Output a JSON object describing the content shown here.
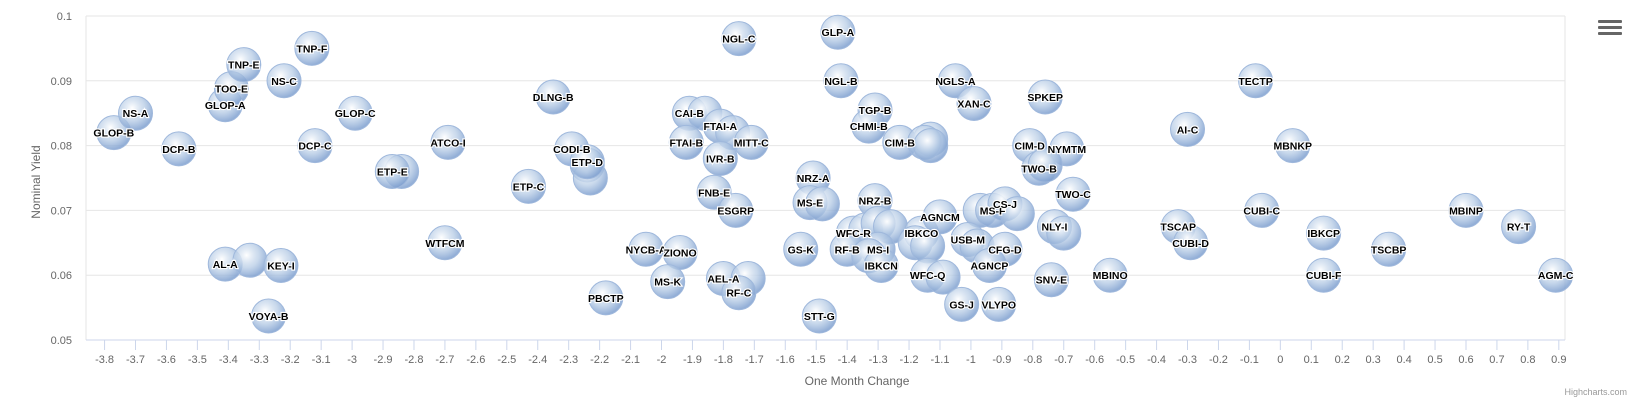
{
  "chart_data": {
    "type": "scatter",
    "xlabel": "One Month Change",
    "ylabel": "Nominal Yield",
    "xlim": [
      -3.86,
      0.92
    ],
    "ylim": [
      0.05,
      0.1
    ],
    "x_ticks": [
      "-3.8",
      "-3.7",
      "-3.6",
      "-3.5",
      "-3.4",
      "-3.3",
      "-3.2",
      "-3.1",
      "-3",
      "-2.9",
      "-2.8",
      "-2.7",
      "-2.6",
      "-2.5",
      "-2.4",
      "-2.3",
      "-2.2",
      "-2.1",
      "-2",
      "-1.9",
      "-1.8",
      "-1.7",
      "-1.6",
      "-1.5",
      "-1.4",
      "-1.3",
      "-1.2",
      "-1.1",
      "-1",
      "-0.9",
      "-0.8",
      "-0.7",
      "-0.6",
      "-0.5",
      "-0.4",
      "-0.3",
      "-0.2",
      "-0.1",
      "0",
      "0.1",
      "0.2",
      "0.3",
      "0.4",
      "0.5",
      "0.6",
      "0.7",
      "0.8",
      "0.9"
    ],
    "y_ticks": [
      "0.05",
      "0.06",
      "0.07",
      "0.08",
      "0.09",
      "0.1"
    ],
    "grid": true,
    "marker_color": "#b8cde6",
    "points": [
      {
        "x": -3.77,
        "y": 0.082,
        "label": "GLOP-B"
      },
      {
        "x": -3.7,
        "y": 0.085,
        "label": "NS-A"
      },
      {
        "x": -3.56,
        "y": 0.0795,
        "label": "DCP-B"
      },
      {
        "x": -3.41,
        "y": 0.0863,
        "label": "GLOP-A"
      },
      {
        "x": -3.39,
        "y": 0.0888,
        "label": "TOO-E"
      },
      {
        "x": -3.35,
        "y": 0.0925,
        "label": "TNP-E"
      },
      {
        "x": -3.22,
        "y": 0.09,
        "label": "NS-C"
      },
      {
        "x": -3.13,
        "y": 0.095,
        "label": "TNP-F"
      },
      {
        "x": -3.12,
        "y": 0.08,
        "label": "DCP-C"
      },
      {
        "x": -2.99,
        "y": 0.085,
        "label": "GLOP-C"
      },
      {
        "x": -2.84,
        "y": 0.076,
        "label": ""
      },
      {
        "x": -2.87,
        "y": 0.076,
        "label": "ETP-E"
      },
      {
        "x": -2.69,
        "y": 0.0805,
        "label": "ATCO-I"
      },
      {
        "x": -2.7,
        "y": 0.065,
        "label": "WTFCM"
      },
      {
        "x": -3.41,
        "y": 0.0617,
        "label": "AL-A"
      },
      {
        "x": -3.33,
        "y": 0.0623,
        "label": ""
      },
      {
        "x": -3.23,
        "y": 0.0615,
        "label": "KEY-I"
      },
      {
        "x": -3.27,
        "y": 0.0537,
        "label": "VOYA-B"
      },
      {
        "x": -2.35,
        "y": 0.0875,
        "label": "DLNG-B"
      },
      {
        "x": -2.43,
        "y": 0.0737,
        "label": "ETP-C"
      },
      {
        "x": -2.29,
        "y": 0.0795,
        "label": "CODI-B"
      },
      {
        "x": -2.24,
        "y": 0.077,
        "label": ""
      },
      {
        "x": -2.23,
        "y": 0.075,
        "label": ""
      },
      {
        "x": -2.24,
        "y": 0.0775,
        "label": "ETP-D"
      },
      {
        "x": -2.18,
        "y": 0.0565,
        "label": "PBCTP"
      },
      {
        "x": -2.05,
        "y": 0.064,
        "label": "NYCB-A"
      },
      {
        "x": -1.94,
        "y": 0.0635,
        "label": "ZIONO"
      },
      {
        "x": -1.98,
        "y": 0.059,
        "label": "MS-K"
      },
      {
        "x": -1.91,
        "y": 0.085,
        "label": "CAI-B"
      },
      {
        "x": -1.86,
        "y": 0.085,
        "label": ""
      },
      {
        "x": -1.92,
        "y": 0.0805,
        "label": "FTAI-B"
      },
      {
        "x": -1.81,
        "y": 0.083,
        "label": "FTAI-A"
      },
      {
        "x": -1.77,
        "y": 0.082,
        "label": ""
      },
      {
        "x": -1.71,
        "y": 0.0805,
        "label": "MITT-C"
      },
      {
        "x": -1.81,
        "y": 0.078,
        "label": "IVR-B"
      },
      {
        "x": -1.83,
        "y": 0.0728,
        "label": "FNB-E"
      },
      {
        "x": -1.76,
        "y": 0.07,
        "label": "ESGRP"
      },
      {
        "x": -1.8,
        "y": 0.0595,
        "label": "AEL-A"
      },
      {
        "x": -1.72,
        "y": 0.0595,
        "label": ""
      },
      {
        "x": -1.75,
        "y": 0.0573,
        "label": "RF-C"
      },
      {
        "x": -1.75,
        "y": 0.0965,
        "label": "NGL-C"
      },
      {
        "x": -1.43,
        "y": 0.0975,
        "label": "GLP-A"
      },
      {
        "x": -1.42,
        "y": 0.09,
        "label": "NGL-B"
      },
      {
        "x": -1.51,
        "y": 0.075,
        "label": "NRZ-A"
      },
      {
        "x": -1.52,
        "y": 0.0712,
        "label": "MS-E"
      },
      {
        "x": -1.48,
        "y": 0.071,
        "label": ""
      },
      {
        "x": -1.55,
        "y": 0.064,
        "label": "GS-K"
      },
      {
        "x": -1.49,
        "y": 0.0537,
        "label": "STT-G"
      },
      {
        "x": -1.31,
        "y": 0.0855,
        "label": "TGP-B"
      },
      {
        "x": -1.33,
        "y": 0.083,
        "label": "CHMI-B"
      },
      {
        "x": -1.23,
        "y": 0.0805,
        "label": "CIM-B"
      },
      {
        "x": -1.13,
        "y": 0.081,
        "label": ""
      },
      {
        "x": -1.15,
        "y": 0.0805,
        "label": ""
      },
      {
        "x": -1.13,
        "y": 0.08,
        "label": ""
      },
      {
        "x": -1.31,
        "y": 0.0715,
        "label": "NRZ-B"
      },
      {
        "x": -1.38,
        "y": 0.0665,
        "label": "WFC-R"
      },
      {
        "x": -1.34,
        "y": 0.067,
        "label": ""
      },
      {
        "x": -1.3,
        "y": 0.068,
        "label": ""
      },
      {
        "x": -1.26,
        "y": 0.0675,
        "label": ""
      },
      {
        "x": -1.4,
        "y": 0.064,
        "label": "RF-B"
      },
      {
        "x": -1.3,
        "y": 0.064,
        "label": "MS-I"
      },
      {
        "x": -1.33,
        "y": 0.063,
        "label": ""
      },
      {
        "x": -1.29,
        "y": 0.0615,
        "label": "IBKCN"
      },
      {
        "x": -1.16,
        "y": 0.0665,
        "label": "IBKCO"
      },
      {
        "x": -1.18,
        "y": 0.065,
        "label": ""
      },
      {
        "x": -1.14,
        "y": 0.0645,
        "label": ""
      },
      {
        "x": -1.1,
        "y": 0.069,
        "label": "AGNCM"
      },
      {
        "x": -1.14,
        "y": 0.06,
        "label": "WFC-Q"
      },
      {
        "x": -1.09,
        "y": 0.0597,
        "label": ""
      },
      {
        "x": -1.05,
        "y": 0.09,
        "label": "NGLS-A"
      },
      {
        "x": -0.99,
        "y": 0.0865,
        "label": "XAN-C"
      },
      {
        "x": -0.97,
        "y": 0.07,
        "label": ""
      },
      {
        "x": -0.93,
        "y": 0.07,
        "label": "MS-F"
      },
      {
        "x": -0.89,
        "y": 0.071,
        "label": "CS-J"
      },
      {
        "x": -0.85,
        "y": 0.0695,
        "label": ""
      },
      {
        "x": -1.01,
        "y": 0.0655,
        "label": "USB-M"
      },
      {
        "x": -0.98,
        "y": 0.0645,
        "label": ""
      },
      {
        "x": -0.89,
        "y": 0.064,
        "label": "CFG-D"
      },
      {
        "x": -0.94,
        "y": 0.0615,
        "label": "AGNCP"
      },
      {
        "x": -1.03,
        "y": 0.0555,
        "label": "GS-J"
      },
      {
        "x": -0.91,
        "y": 0.0555,
        "label": "VLYPO"
      },
      {
        "x": -0.76,
        "y": 0.0875,
        "label": "SPKEP"
      },
      {
        "x": -0.81,
        "y": 0.08,
        "label": "CIM-D"
      },
      {
        "x": -0.69,
        "y": 0.0795,
        "label": "NYMTM"
      },
      {
        "x": -0.78,
        "y": 0.0765,
        "label": "TWO-B"
      },
      {
        "x": -0.76,
        "y": 0.077,
        "label": ""
      },
      {
        "x": -0.67,
        "y": 0.0725,
        "label": "TWO-C"
      },
      {
        "x": -0.73,
        "y": 0.0675,
        "label": "NLY-I"
      },
      {
        "x": -0.7,
        "y": 0.0665,
        "label": ""
      },
      {
        "x": -0.74,
        "y": 0.0593,
        "label": "SNV-E"
      },
      {
        "x": -0.55,
        "y": 0.06,
        "label": "MBINO"
      },
      {
        "x": -0.33,
        "y": 0.0675,
        "label": "TSCAP"
      },
      {
        "x": -0.29,
        "y": 0.065,
        "label": "CUBI-D"
      },
      {
        "x": -0.3,
        "y": 0.0825,
        "label": "AI-C"
      },
      {
        "x": -0.08,
        "y": 0.09,
        "label": "TECTP"
      },
      {
        "x": 0.04,
        "y": 0.08,
        "label": "MBNKP"
      },
      {
        "x": -0.06,
        "y": 0.07,
        "label": "CUBI-C"
      },
      {
        "x": 0.14,
        "y": 0.0665,
        "label": "IBKCP"
      },
      {
        "x": 0.14,
        "y": 0.06,
        "label": "CUBI-F"
      },
      {
        "x": 0.35,
        "y": 0.064,
        "label": "TSCBP"
      },
      {
        "x": 0.6,
        "y": 0.07,
        "label": "MBINP"
      },
      {
        "x": 0.77,
        "y": 0.0675,
        "label": "RY-T"
      },
      {
        "x": 0.89,
        "y": 0.06,
        "label": "AGM-C"
      }
    ]
  },
  "credits": "Highcharts.com"
}
